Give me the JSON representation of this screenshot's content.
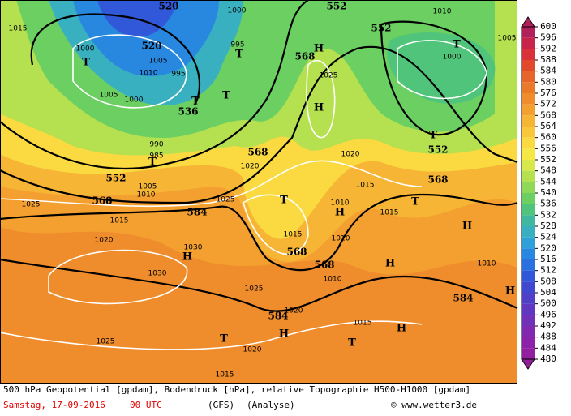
{
  "map": {
    "labels": [
      {
        "text": "520",
        "kind": "height"
      },
      {
        "text": "552",
        "kind": "height"
      },
      {
        "text": "552",
        "kind": "height"
      },
      {
        "text": "520",
        "kind": "height"
      },
      {
        "text": "568",
        "kind": "height"
      },
      {
        "text": "536",
        "kind": "height"
      },
      {
        "text": "568",
        "kind": "height"
      },
      {
        "text": "552",
        "kind": "height"
      },
      {
        "text": "568",
        "kind": "height"
      },
      {
        "text": "584",
        "kind": "height"
      },
      {
        "text": "568",
        "kind": "height"
      },
      {
        "text": "552",
        "kind": "height"
      },
      {
        "text": "568",
        "kind": "height"
      },
      {
        "text": "568",
        "kind": "height"
      },
      {
        "text": "584",
        "kind": "height"
      },
      {
        "text": "584",
        "kind": "height"
      },
      {
        "text": "1000",
        "kind": "pressure"
      },
      {
        "text": "1015",
        "kind": "pressure"
      },
      {
        "text": "1000",
        "kind": "pressure"
      },
      {
        "text": "1005",
        "kind": "pressure"
      },
      {
        "text": "1010",
        "kind": "pressure"
      },
      {
        "text": "995",
        "kind": "pressure"
      },
      {
        "text": "1005",
        "kind": "pressure"
      },
      {
        "text": "1000",
        "kind": "pressure"
      },
      {
        "text": "1005",
        "kind": "pressure"
      },
      {
        "text": "1010",
        "kind": "pressure"
      },
      {
        "text": "1000",
        "kind": "pressure"
      },
      {
        "text": "1025",
        "kind": "pressure"
      },
      {
        "text": "990",
        "kind": "pressure"
      },
      {
        "text": "985",
        "kind": "pressure"
      },
      {
        "text": "1020",
        "kind": "pressure"
      },
      {
        "text": "1020",
        "kind": "pressure"
      },
      {
        "text": "1015",
        "kind": "pressure"
      },
      {
        "text": "1010",
        "kind": "pressure"
      },
      {
        "text": "1015",
        "kind": "pressure"
      },
      {
        "text": "1025",
        "kind": "pressure"
      },
      {
        "text": "1025",
        "kind": "pressure"
      },
      {
        "text": "1015",
        "kind": "pressure"
      },
      {
        "text": "1020",
        "kind": "pressure"
      },
      {
        "text": "1030",
        "kind": "pressure"
      },
      {
        "text": "1030",
        "kind": "pressure"
      },
      {
        "text": "1015",
        "kind": "pressure"
      },
      {
        "text": "1010",
        "kind": "pressure"
      },
      {
        "text": "1010",
        "kind": "pressure"
      },
      {
        "text": "1025",
        "kind": "pressure"
      },
      {
        "text": "1020",
        "kind": "pressure"
      },
      {
        "text": "1015",
        "kind": "pressure"
      },
      {
        "text": "1025",
        "kind": "pressure"
      },
      {
        "text": "1020",
        "kind": "pressure"
      },
      {
        "text": "1015",
        "kind": "pressure"
      },
      {
        "text": "1010",
        "kind": "pressure"
      },
      {
        "text": "995",
        "kind": "pressure"
      },
      {
        "text": "1010",
        "kind": "pressure"
      },
      {
        "text": "1005",
        "kind": "pressure"
      },
      {
        "text": "T",
        "kind": "center"
      },
      {
        "text": "T",
        "kind": "center"
      },
      {
        "text": "T",
        "kind": "center"
      },
      {
        "text": "T",
        "kind": "center"
      },
      {
        "text": "H",
        "kind": "center"
      },
      {
        "text": "H",
        "kind": "center"
      },
      {
        "text": "T",
        "kind": "center"
      },
      {
        "text": "T",
        "kind": "center"
      },
      {
        "text": "T",
        "kind": "center"
      },
      {
        "text": "T",
        "kind": "center"
      },
      {
        "text": "H",
        "kind": "center"
      },
      {
        "text": "T",
        "kind": "center"
      },
      {
        "text": "H",
        "kind": "center"
      },
      {
        "text": "H",
        "kind": "center"
      },
      {
        "text": "H",
        "kind": "center"
      },
      {
        "text": "H",
        "kind": "center"
      },
      {
        "text": "T",
        "kind": "center"
      },
      {
        "text": "H",
        "kind": "center"
      },
      {
        "text": "H",
        "kind": "center"
      },
      {
        "text": "T",
        "kind": "center"
      }
    ]
  },
  "colorbar": {
    "levels": [
      600,
      596,
      592,
      588,
      584,
      580,
      576,
      572,
      568,
      564,
      560,
      556,
      552,
      548,
      544,
      540,
      536,
      532,
      528,
      524,
      520,
      516,
      512,
      508,
      504,
      500,
      496,
      492,
      488,
      484,
      480
    ],
    "colors": [
      "#b0205a",
      "#c8234a",
      "#d9303a",
      "#e04a2a",
      "#e5652a",
      "#ea7a2a",
      "#ef8c2c",
      "#f3a030",
      "#f6b535",
      "#f8c83a",
      "#fada40",
      "#f5e845",
      "#d8e84a",
      "#b5e050",
      "#90d858",
      "#6ccf62",
      "#50c47a",
      "#40b8a0",
      "#38b0c0",
      "#30a0d8",
      "#2888e0",
      "#2a70e0",
      "#3058d8",
      "#4048d0",
      "#5040c8",
      "#6038c0",
      "#7030b8",
      "#8028b0",
      "#8c22a8",
      "#9020a0",
      "#901e98"
    ]
  },
  "footer": {
    "description": "500 hPa Geopotential [gpdam], Bodendruck [hPa], relative Topographie H500-H1000 [gpdam]",
    "date": "Samstag, 17-09-2016",
    "time": "00 UTC",
    "model": "(GFS)",
    "run": "(Analyse)",
    "copyright": "© www.wetter3.de"
  }
}
